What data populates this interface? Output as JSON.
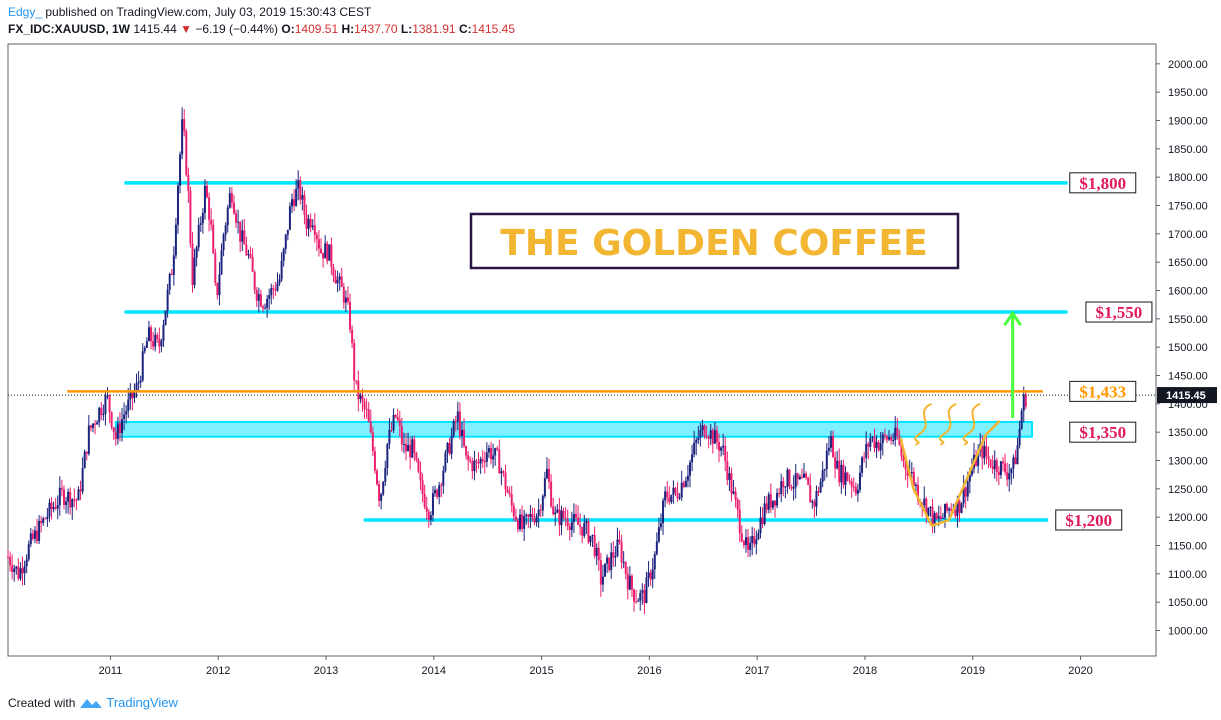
{
  "header": {
    "author": "Edgy_",
    "published": "published on TradingView.com, July 03, 2019 15:30:43 CEST",
    "symbol": "FX_IDC:XAUUSD, 1W",
    "last": "1415.44",
    "change": "−6.19 (−0.44%)",
    "o_label": "O:",
    "o_value": "1409.51",
    "h_label": "H:",
    "h_value": "1437.70",
    "l_label": "L:",
    "l_value": "1381.91",
    "c_label": "C:",
    "c_value": "1415.45"
  },
  "footer": {
    "created_with": "Created with",
    "brand": "TradingView"
  },
  "colors": {
    "up_candle": "#1a237e",
    "down_candle": "#ec1e6e",
    "level_line": "#00e5ff",
    "level_zone": "#7ff0ff",
    "orange_line": "#ff9800",
    "arrow": "#4cff3c",
    "title_text": "#f2b632",
    "title_border": "#2a1645",
    "price_label_text": "#e0195a",
    "price_badge_bg": "#131722"
  },
  "chart_data": {
    "type": "candlestick",
    "title": "THE GOLDEN COFFEE",
    "x_ticks": [
      "2011",
      "2012",
      "2013",
      "2014",
      "2015",
      "2016",
      "2017",
      "2018",
      "2019",
      "2020"
    ],
    "y_ticks": [
      "2000.00",
      "1950.00",
      "1900.00",
      "1850.00",
      "1800.00",
      "1750.00",
      "1700.00",
      "1650.00",
      "1600.00",
      "1550.00",
      "1500.00",
      "1450.00",
      "1400.00",
      "1350.00",
      "1300.00",
      "1250.00",
      "1200.00",
      "1150.00",
      "1100.00",
      "1050.00",
      "1000.00"
    ],
    "ylim": [
      955,
      2035
    ],
    "xlim": [
      2010.05,
      2020.7
    ],
    "current_price": 1415.45,
    "current_price_label": "1415.45",
    "close_path": [
      [
        2010.05,
        1130
      ],
      [
        2010.15,
        1100
      ],
      [
        2010.25,
        1150
      ],
      [
        2010.4,
        1200
      ],
      [
        2010.55,
        1240
      ],
      [
        2010.7,
        1230
      ],
      [
        2010.8,
        1350
      ],
      [
        2010.9,
        1390
      ],
      [
        2010.97,
        1410
      ],
      [
        2011.05,
        1340
      ],
      [
        2011.12,
        1380
      ],
      [
        2011.25,
        1430
      ],
      [
        2011.35,
        1520
      ],
      [
        2011.45,
        1500
      ],
      [
        2011.52,
        1580
      ],
      [
        2011.58,
        1650
      ],
      [
        2011.63,
        1800
      ],
      [
        2011.67,
        1900
      ],
      [
        2011.72,
        1780
      ],
      [
        2011.76,
        1620
      ],
      [
        2011.82,
        1700
      ],
      [
        2011.88,
        1780
      ],
      [
        2011.93,
        1720
      ],
      [
        2011.98,
        1580
      ],
      [
        2012.05,
        1700
      ],
      [
        2012.12,
        1780
      ],
      [
        2012.2,
        1700
      ],
      [
        2012.28,
        1660
      ],
      [
        2012.35,
        1600
      ],
      [
        2012.42,
        1580
      ],
      [
        2012.5,
        1600
      ],
      [
        2012.57,
        1620
      ],
      [
        2012.62,
        1680
      ],
      [
        2012.68,
        1760
      ],
      [
        2012.75,
        1780
      ],
      [
        2012.82,
        1720
      ],
      [
        2012.88,
        1730
      ],
      [
        2012.95,
        1670
      ],
      [
        2013.02,
        1670
      ],
      [
        2013.1,
        1620
      ],
      [
        2013.17,
        1590
      ],
      [
        2013.22,
        1550
      ],
      [
        2013.27,
        1430
      ],
      [
        2013.33,
        1400
      ],
      [
        2013.38,
        1380
      ],
      [
        2013.45,
        1300
      ],
      [
        2013.5,
        1230
      ],
      [
        2013.57,
        1330
      ],
      [
        2013.65,
        1380
      ],
      [
        2013.72,
        1320
      ],
      [
        2013.8,
        1320
      ],
      [
        2013.88,
        1250
      ],
      [
        2013.96,
        1210
      ],
      [
        2014.05,
        1260
      ],
      [
        2014.15,
        1330
      ],
      [
        2014.22,
        1380
      ],
      [
        2014.3,
        1300
      ],
      [
        2014.4,
        1290
      ],
      [
        2014.5,
        1320
      ],
      [
        2014.6,
        1300
      ],
      [
        2014.72,
        1220
      ],
      [
        2014.82,
        1180
      ],
      [
        2014.9,
        1200
      ],
      [
        2014.97,
        1210
      ],
      [
        2015.05,
        1280
      ],
      [
        2015.12,
        1200
      ],
      [
        2015.22,
        1200
      ],
      [
        2015.3,
        1190
      ],
      [
        2015.4,
        1180
      ],
      [
        2015.48,
        1160
      ],
      [
        2015.55,
        1090
      ],
      [
        2015.65,
        1130
      ],
      [
        2015.72,
        1150
      ],
      [
        2015.8,
        1090
      ],
      [
        2015.87,
        1060
      ],
      [
        2015.95,
        1060
      ],
      [
        2016.05,
        1130
      ],
      [
        2016.15,
        1240
      ],
      [
        2016.25,
        1240
      ],
      [
        2016.35,
        1280
      ],
      [
        2016.45,
        1340
      ],
      [
        2016.52,
        1360
      ],
      [
        2016.6,
        1340
      ],
      [
        2016.68,
        1320
      ],
      [
        2016.75,
        1260
      ],
      [
        2016.85,
        1180
      ],
      [
        2016.92,
        1130
      ],
      [
        2017.0,
        1180
      ],
      [
        2017.08,
        1220
      ],
      [
        2017.18,
        1240
      ],
      [
        2017.25,
        1270
      ],
      [
        2017.35,
        1260
      ],
      [
        2017.45,
        1260
      ],
      [
        2017.52,
        1220
      ],
      [
        2017.6,
        1270
      ],
      [
        2017.68,
        1340
      ],
      [
        2017.75,
        1280
      ],
      [
        2017.85,
        1270
      ],
      [
        2017.92,
        1250
      ],
      [
        2017.98,
        1300
      ],
      [
        2018.05,
        1340
      ],
      [
        2018.12,
        1330
      ],
      [
        2018.2,
        1340
      ],
      [
        2018.3,
        1340
      ],
      [
        2018.35,
        1300
      ],
      [
        2018.42,
        1280
      ],
      [
        2018.5,
        1240
      ],
      [
        2018.6,
        1210
      ],
      [
        2018.65,
        1190
      ],
      [
        2018.72,
        1200
      ],
      [
        2018.8,
        1220
      ],
      [
        2018.87,
        1220
      ],
      [
        2018.93,
        1250
      ],
      [
        2019.0,
        1290
      ],
      [
        2019.08,
        1320
      ],
      [
        2019.15,
        1300
      ],
      [
        2019.25,
        1290
      ],
      [
        2019.32,
        1280
      ],
      [
        2019.38,
        1290
      ],
      [
        2019.42,
        1330
      ],
      [
        2019.46,
        1400
      ],
      [
        2019.5,
        1415
      ]
    ],
    "horizontal_levels": [
      {
        "price": 1790,
        "x_start": 2011.13,
        "x_end": 2019.88
      },
      {
        "price": 1562,
        "x_start": 2011.13,
        "x_end": 2019.88
      },
      {
        "price": 1195,
        "x_start": 2013.35,
        "x_end": 2019.7
      }
    ],
    "support_zone": {
      "price_low": 1342,
      "price_high": 1368,
      "x_start": 2011.05,
      "x_end": 2019.55
    },
    "orange_level": {
      "price": 1422,
      "x_start": 2010.6,
      "x_end": 2019.65
    },
    "price_labels": [
      {
        "text": "$1,800",
        "price": 1790,
        "x": 2019.9
      },
      {
        "text": "$1,550",
        "price": 1562,
        "x": 2020.05
      },
      {
        "text": "$1,433",
        "price": 1422,
        "x": 2019.9
      },
      {
        "text": "$1,350",
        "price": 1350,
        "x": 2019.9
      },
      {
        "text": "$1,200",
        "price": 1195,
        "x": 2019.77
      }
    ],
    "arrow": {
      "x": 2019.37,
      "price_from": 1375,
      "price_to": 1560
    },
    "cup_curve": [
      [
        2018.33,
        1340
      ],
      [
        2018.45,
        1250
      ],
      [
        2018.62,
        1185
      ],
      [
        2018.78,
        1195
      ],
      [
        2018.95,
        1270
      ],
      [
        2019.12,
        1345
      ],
      [
        2019.25,
        1370
      ]
    ],
    "steam_marks": [
      2018.45,
      2018.68,
      2018.9
    ]
  }
}
